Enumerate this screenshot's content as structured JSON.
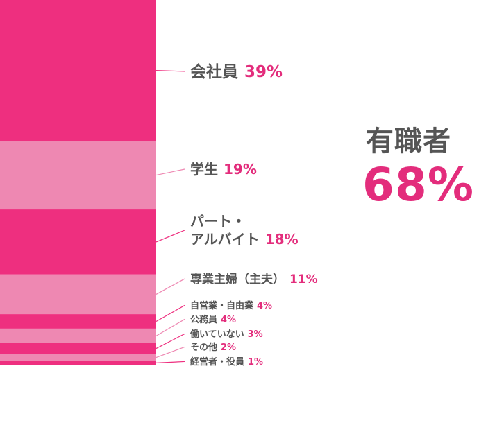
{
  "chart_data": {
    "type": "bar",
    "orientation": "stacked-vertical",
    "categories": [
      "会社員",
      "学生",
      "パート・アルバイト",
      "専業主婦（主夫）",
      "自営業・自由業",
      "公務員",
      "働いていない",
      "その他",
      "経営者・役員"
    ],
    "values": [
      39,
      19,
      18,
      11,
      4,
      4,
      3,
      2,
      1
    ],
    "value_labels": [
      "39%",
      "19%",
      "18%",
      "11%",
      "4%",
      "4%",
      "3%",
      "2%",
      "1%"
    ],
    "label_lines": [
      [
        "会社員"
      ],
      [
        "学生"
      ],
      [
        "パート・",
        "アルバイト"
      ],
      [
        "専業主婦（主夫）"
      ],
      [
        "自営業・自由業"
      ],
      [
        "公務員"
      ],
      [
        "働いていない"
      ],
      [
        "その他"
      ],
      [
        "経営者・役員"
      ]
    ],
    "unit": "%",
    "colors": [
      "#ee2f7f",
      "#ee88b2",
      "#ee2f7f",
      "#ee88b2",
      "#ee2f7f",
      "#ee88b2",
      "#ee2f7f",
      "#ee88b2",
      "#ee2f7f"
    ],
    "label_color": "#555555",
    "value_color": "#e32d7c"
  },
  "summary": {
    "label": "有職者",
    "value": "68%"
  }
}
